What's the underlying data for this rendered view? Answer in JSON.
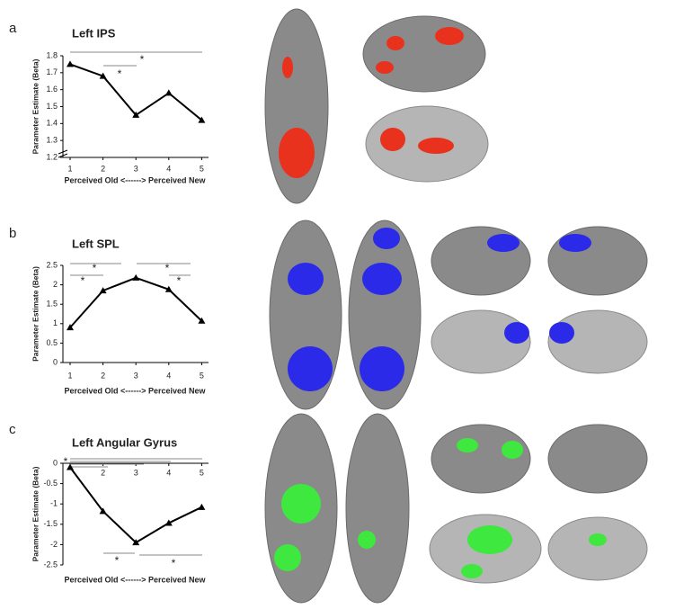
{
  "chart_data": [
    {
      "type": "line",
      "panel": "a",
      "title": "Left IPS",
      "y_label": "Parameter Estimate (Beta)",
      "x_label": "Perceived Old <------> Perceived New",
      "categories": [
        "1",
        "2",
        "3",
        "4",
        "5"
      ],
      "values": [
        1.75,
        1.68,
        1.45,
        1.58,
        1.42
      ],
      "color": "#000000",
      "ylim": [
        1.2,
        1.8
      ],
      "yticks": [
        1.2,
        1.3,
        1.4,
        1.5,
        1.6,
        1.7,
        1.8
      ],
      "annotations": [
        "*",
        "*"
      ]
    },
    {
      "type": "line",
      "panel": "b",
      "title": "Left SPL",
      "y_label": "Parameter Estimate (Beta)",
      "x_label": "Perceived Old <------> Perceived New",
      "categories": [
        "1",
        "2",
        "3",
        "4",
        "5"
      ],
      "values": [
        0.9,
        1.85,
        2.18,
        1.88,
        1.07
      ],
      "color": "#000000",
      "ylim": [
        0,
        2.5
      ],
      "yticks": [
        0,
        0.5,
        1,
        1.5,
        2,
        2.5
      ],
      "annotations": [
        "*",
        "*",
        "*",
        "*"
      ]
    },
    {
      "type": "line",
      "panel": "c",
      "title": "Left Angular Gyrus",
      "y_label": "Parameter Estimate (Beta)",
      "x_label": "Perceived Old <------> Perceived New",
      "categories": [
        null,
        "2",
        "3",
        "4",
        "5"
      ],
      "values": [
        -0.1,
        -1.18,
        -1.95,
        -1.47,
        -1.08
      ],
      "color": "#000000",
      "ylim": [
        -2.5,
        0
      ],
      "yticks": [
        0,
        -0.5,
        -1,
        -1.5,
        -2,
        -2.5
      ],
      "annotations": [
        "*",
        "*",
        "*"
      ]
    }
  ]
}
